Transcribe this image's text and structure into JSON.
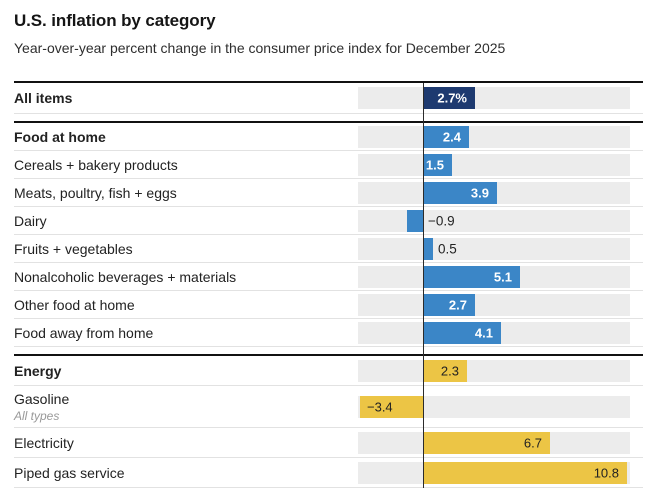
{
  "title": "U.S. inflation by category",
  "subtitle": "Year-over-year percent change in the consumer price index for December 2025",
  "colors": {
    "navy": "#1e3a70",
    "blue": "#3b86c7",
    "yellow": "#ecc545",
    "track": "#ececec",
    "divider_heavy": "#111111",
    "divider_light": "#e2e2e2",
    "baseline": "#2b2b2b"
  },
  "chart_data": {
    "type": "bar",
    "orientation": "horizontal",
    "unit": "percent",
    "baseline": 0,
    "x_range": [
      -3.5,
      11
    ],
    "grid": false,
    "rows": [
      {
        "label": "All items",
        "value": 2.7,
        "display": "2.7%",
        "color": "navy",
        "bold": true,
        "label_position": "inside"
      },
      {
        "label": "Food at home",
        "value": 2.4,
        "display": "2.4",
        "color": "blue",
        "bold": true,
        "label_position": "inside",
        "group_start": true
      },
      {
        "label": "Cereals + bakery products",
        "value": 1.5,
        "display": "1.5",
        "color": "blue",
        "label_position": "inside"
      },
      {
        "label": "Meats, poultry, fish + eggs",
        "value": 3.9,
        "display": "3.9",
        "color": "blue",
        "label_position": "inside"
      },
      {
        "label": "Dairy",
        "value": -0.9,
        "display": "−0.9",
        "color": "blue",
        "label_position": "outside"
      },
      {
        "label": "Fruits + vegetables",
        "value": 0.5,
        "display": "0.5",
        "color": "blue",
        "label_position": "outside"
      },
      {
        "label": "Nonalcoholic beverages + materials",
        "value": 5.1,
        "display": "5.1",
        "color": "blue",
        "label_position": "inside"
      },
      {
        "label": "Other food at home",
        "value": 2.7,
        "display": "2.7",
        "color": "blue",
        "label_position": "inside"
      },
      {
        "label": "Food away from home",
        "value": 4.1,
        "display": "4.1",
        "color": "blue",
        "label_position": "inside"
      },
      {
        "label": "Energy",
        "value": 2.3,
        "display": "2.3",
        "color": "yellow",
        "bold": true,
        "label_position": "inside",
        "group_start": true
      },
      {
        "label": "Gasoline",
        "sublabel": "All types",
        "value": -3.4,
        "display": "−3.4",
        "color": "yellow",
        "label_position": "inside"
      },
      {
        "label": "Electricity",
        "value": 6.7,
        "display": "6.7",
        "color": "yellow",
        "label_position": "inside"
      },
      {
        "label": "Piped gas service",
        "value": 10.8,
        "display": "10.8",
        "color": "yellow",
        "label_position": "inside"
      }
    ]
  }
}
